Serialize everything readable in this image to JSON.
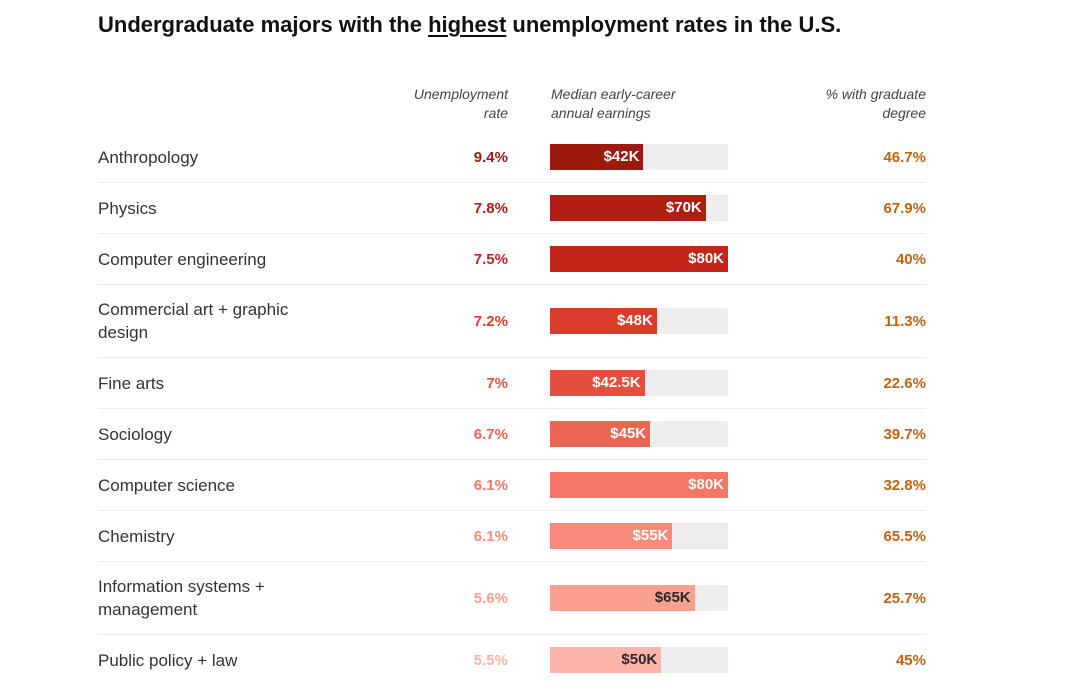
{
  "title": {
    "pre": "Undergraduate majors with the ",
    "emph": "highest",
    "post": " unemployment rates in the U.S."
  },
  "headers": {
    "rate": [
      "Unemployment",
      "rate"
    ],
    "earnings": [
      "Median early-career",
      "annual earnings"
    ],
    "grad": [
      "% with graduate",
      "degree"
    ]
  },
  "chart_data": {
    "type": "table",
    "earnings_scale_max": 80000,
    "grad_color": "#c4610e",
    "rows": [
      {
        "major": "Anthropology",
        "rate": "9.4%",
        "earnings": 42000,
        "earnings_label": "$42K",
        "grad": "46.7%",
        "color": "#9b1a0e",
        "label_color": "#ffffff"
      },
      {
        "major": "Physics",
        "rate": "7.8%",
        "earnings": 70000,
        "earnings_label": "$70K",
        "grad": "67.9%",
        "color": "#b01d12",
        "label_color": "#ffffff"
      },
      {
        "major": "Computer engineering",
        "rate": "7.5%",
        "earnings": 80000,
        "earnings_label": "$80K",
        "grad": "40%",
        "color": "#c6261a",
        "label_color": "#ffffff"
      },
      {
        "major": "Commercial art + graphic design",
        "rate": "7.2%",
        "earnings": 48000,
        "earnings_label": "$48K",
        "grad": "11.3%",
        "color": "#dc3a2c",
        "label_color": "#ffffff"
      },
      {
        "major": "Fine arts",
        "rate": "7%",
        "earnings": 42500,
        "earnings_label": "$42.5K",
        "grad": "22.6%",
        "color": "#e5503e",
        "label_color": "#ffffff"
      },
      {
        "major": "Sociology",
        "rate": "6.7%",
        "earnings": 45000,
        "earnings_label": "$45K",
        "grad": "39.7%",
        "color": "#ec6454",
        "label_color": "#ffffff"
      },
      {
        "major": "Computer science",
        "rate": "6.1%",
        "earnings": 80000,
        "earnings_label": "$80K",
        "grad": "32.8%",
        "color": "#f57566",
        "label_color": "#ffffff"
      },
      {
        "major": "Chemistry",
        "rate": "6.1%",
        "earnings": 55000,
        "earnings_label": "$55K",
        "grad": "65.5%",
        "color": "#f88a7b",
        "label_color": "#ffffff"
      },
      {
        "major": "Information systems + management",
        "rate": "5.6%",
        "earnings": 65000,
        "earnings_label": "$65K",
        "grad": "25.7%",
        "color": "#fba090",
        "label_color": "#2a2a2a"
      },
      {
        "major": "Public policy + law",
        "rate": "5.5%",
        "earnings": 50000,
        "earnings_label": "$50K",
        "grad": "45%",
        "color": "#fcb3a8",
        "label_color": "#2a2a2a"
      }
    ]
  }
}
